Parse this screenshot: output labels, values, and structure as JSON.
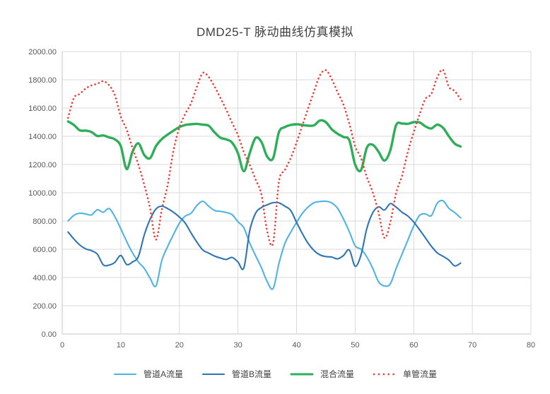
{
  "chart_data": {
    "type": "line",
    "title": "DMD25-T 脉动曲线仿真模拟",
    "grid": true,
    "legend_position": "bottom",
    "colors": {
      "grid_line": "#d9d9d9",
      "axis_line": "#c6c6c6",
      "tick_text": "#595959",
      "title_text": "#404040"
    },
    "x_axis": {
      "min": 0,
      "max": 80,
      "tick_interval": 10,
      "labels": [
        "0",
        "10",
        "20",
        "30",
        "40",
        "50",
        "60",
        "70",
        "80"
      ],
      "values": [
        0,
        10,
        20,
        30,
        40,
        50,
        60,
        70,
        80
      ]
    },
    "y_axis": {
      "min": 0,
      "max": 2000,
      "tick_interval": 200,
      "labels": [
        "0.00",
        "200.00",
        "400.00",
        "600.00",
        "800.00",
        "1000.00",
        "1200.00",
        "1400.00",
        "1600.00",
        "1800.00",
        "2000.00"
      ],
      "values": [
        0,
        200,
        400,
        600,
        800,
        1000,
        1200,
        1400,
        1600,
        1800,
        2000
      ]
    },
    "x_start": 1,
    "x_step": 1,
    "series": [
      {
        "name": "管道A流量",
        "color": "#4FB3E4",
        "style": "solid",
        "width": 2.1,
        "values": [
          800,
          840,
          855,
          850,
          843,
          880,
          862,
          888,
          830,
          745,
          655,
          575,
          510,
          465,
          395,
          340,
          520,
          620,
          705,
          785,
          835,
          855,
          910,
          940,
          905,
          875,
          868,
          860,
          845,
          795,
          752,
          645,
          555,
          470,
          370,
          322,
          500,
          640,
          720,
          790,
          855,
          900,
          930,
          938,
          940,
          928,
          890,
          815,
          725,
          625,
          600,
          545,
          465,
          370,
          340,
          355,
          465,
          565,
          665,
          765,
          840,
          850,
          838,
          925,
          943,
          890,
          860,
          822
        ]
      },
      {
        "name": "管道B流量",
        "color": "#2E75B6",
        "style": "solid",
        "width": 2.1,
        "values": [
          722,
          672,
          630,
          603,
          590,
          565,
          490,
          488,
          508,
          556,
          492,
          510,
          548,
          700,
          812,
          885,
          905,
          888,
          862,
          828,
          785,
          715,
          650,
          595,
          573,
          552,
          538,
          528,
          542,
          510,
          468,
          730,
          855,
          895,
          915,
          930,
          928,
          905,
          875,
          790,
          710,
          640,
          590,
          560,
          548,
          545,
          532,
          555,
          595,
          480,
          560,
          748,
          858,
          900,
          878,
          923,
          898,
          862,
          835,
          792,
          738,
          680,
          622,
          575,
          550,
          523,
          482,
          502
        ]
      },
      {
        "name": "混合流量",
        "color": "#2EAE58",
        "style": "solid",
        "width": 3.4,
        "values": [
          1505,
          1480,
          1442,
          1440,
          1430,
          1402,
          1406,
          1392,
          1378,
          1330,
          1168,
          1290,
          1350,
          1268,
          1245,
          1330,
          1380,
          1412,
          1440,
          1465,
          1480,
          1485,
          1488,
          1482,
          1475,
          1428,
          1390,
          1378,
          1355,
          1280,
          1152,
          1280,
          1388,
          1360,
          1255,
          1245,
          1430,
          1465,
          1480,
          1485,
          1480,
          1475,
          1478,
          1512,
          1500,
          1450,
          1418,
          1395,
          1372,
          1200,
          1160,
          1320,
          1340,
          1290,
          1228,
          1300,
          1480,
          1490,
          1488,
          1500,
          1498,
          1470,
          1455,
          1482,
          1460,
          1400,
          1348,
          1328
        ]
      },
      {
        "name": "单管流量",
        "color": "#EC3B33",
        "style": "dotted",
        "width": 2.6,
        "values": [
          1530,
          1672,
          1700,
          1738,
          1760,
          1772,
          1790,
          1762,
          1690,
          1540,
          1448,
          1318,
          1200,
          1058,
          890,
          668,
          880,
          1055,
          1300,
          1462,
          1558,
          1635,
          1752,
          1848,
          1820,
          1752,
          1672,
          1588,
          1495,
          1408,
          1288,
          1198,
          1095,
          988,
          725,
          645,
          1080,
          1160,
          1245,
          1355,
          1478,
          1600,
          1720,
          1832,
          1868,
          1805,
          1712,
          1625,
          1490,
          1330,
          1245,
          1110,
          1005,
          860,
          680,
          790,
          1000,
          1120,
          1290,
          1430,
          1555,
          1665,
          1700,
          1815,
          1870,
          1750,
          1720,
          1662
        ]
      }
    ]
  }
}
